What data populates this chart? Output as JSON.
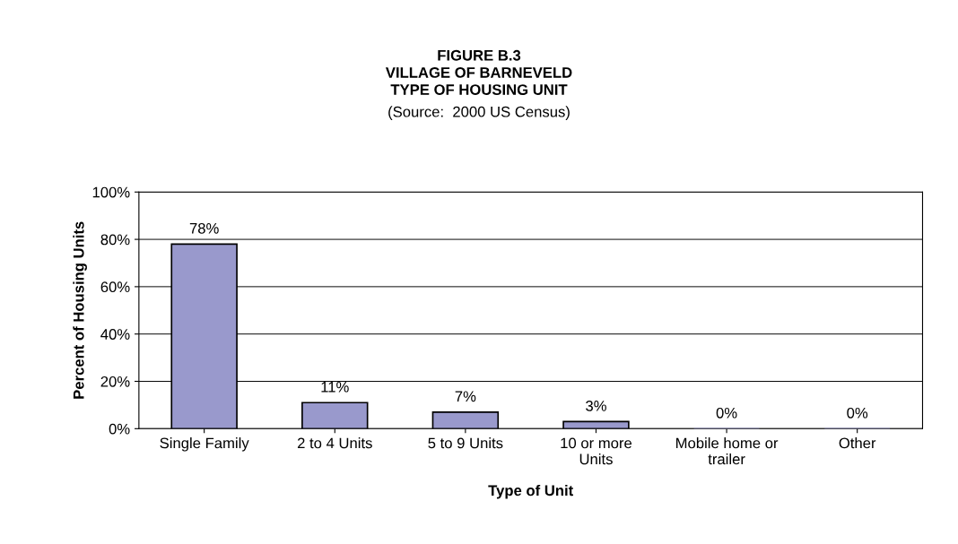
{
  "chart_data": {
    "type": "bar",
    "title": "FIGURE B.3\nVILLAGE OF BARNEVELD\nTYPE OF HOUSING UNIT",
    "subtitle": "(Source:  2000 US Census)",
    "xlabel": "Type of Unit",
    "ylabel": "Percent of Housing Units",
    "categories": [
      "Single Family",
      "2 to 4 Units",
      "5 to 9 Units",
      "10 or more\nUnits",
      "Mobile home or\ntrailer",
      "Other"
    ],
    "values": [
      78,
      11,
      7,
      3,
      0,
      0
    ],
    "value_labels": [
      "78%",
      "11%",
      "7%",
      "3%",
      "0%",
      "0%"
    ],
    "color": "#9999cc",
    "ylim": [
      0,
      100
    ],
    "yticks": [
      {
        "value": 0,
        "label": "0%"
      },
      {
        "value": 20,
        "label": "20%"
      },
      {
        "value": 40,
        "label": "40%"
      },
      {
        "value": 60,
        "label": "60%"
      },
      {
        "value": 80,
        "label": "80%"
      },
      {
        "value": 100,
        "label": "100%"
      }
    ],
    "grid": "y"
  }
}
